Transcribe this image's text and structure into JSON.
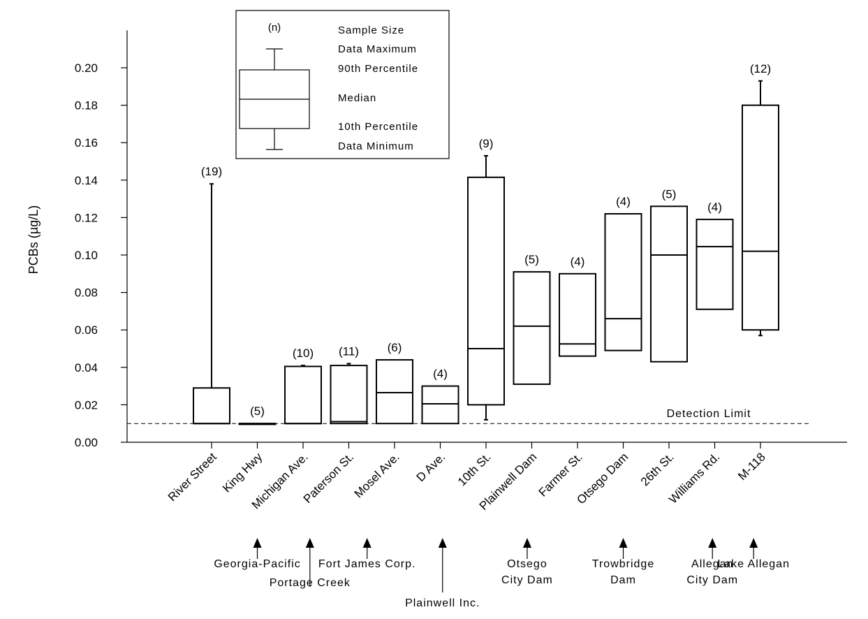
{
  "chart_data": {
    "type": "boxplot",
    "title": "",
    "xlabel": "",
    "ylabel": "PCBs (µg/L)",
    "ylim": [
      0,
      0.22
    ],
    "yticks": [
      "0.00",
      "0.02",
      "0.04",
      "0.06",
      "0.08",
      "0.10",
      "0.12",
      "0.14",
      "0.16",
      "0.18",
      "0.20"
    ],
    "grid": false,
    "categories": [
      "River Street",
      "King Hwy",
      "Michigan Ave.",
      "Paterson St.",
      "Mosel Ave.",
      "D Ave.",
      "10th St.",
      "Plainwell Dam",
      "Farmer St.",
      "Otsego Dam",
      "26th St.",
      "Williams Rd.",
      "M-118"
    ],
    "boxes": [
      {
        "n_label": "(19)",
        "min": 0.01,
        "p10": 0.01,
        "median": 0.01,
        "p90": 0.029,
        "max": 0.138
      },
      {
        "n_label": "(5)",
        "min": 0.01,
        "p10": 0.01,
        "median": 0.01,
        "p90": 0.01,
        "max": 0.01
      },
      {
        "n_label": "(10)",
        "min": 0.01,
        "p10": 0.01,
        "median": 0.01,
        "p90": 0.0405,
        "max": 0.041
      },
      {
        "n_label": "(11)",
        "min": 0.01,
        "p10": 0.01,
        "median": 0.011,
        "p90": 0.041,
        "max": 0.042
      },
      {
        "n_label": "(6)",
        "min": 0.01,
        "p10": 0.01,
        "median": 0.0265,
        "p90": 0.044,
        "max": 0.044
      },
      {
        "n_label": "(4)",
        "min": 0.01,
        "p10": 0.01,
        "median": 0.0205,
        "p90": 0.03,
        "max": 0.03
      },
      {
        "n_label": "(9)",
        "min": 0.012,
        "p10": 0.02,
        "median": 0.05,
        "p90": 0.1415,
        "max": 0.153
      },
      {
        "n_label": "(5)",
        "min": 0.031,
        "p10": 0.031,
        "median": 0.062,
        "p90": 0.091,
        "max": 0.091
      },
      {
        "n_label": "(4)",
        "min": 0.046,
        "p10": 0.046,
        "median": 0.0525,
        "p90": 0.09,
        "max": 0.09
      },
      {
        "n_label": "(4)",
        "min": 0.049,
        "p10": 0.049,
        "median": 0.066,
        "p90": 0.122,
        "max": 0.122
      },
      {
        "n_label": "(5)",
        "min": 0.043,
        "p10": 0.043,
        "median": 0.1,
        "p90": 0.126,
        "max": 0.126
      },
      {
        "n_label": "(4)",
        "min": 0.071,
        "p10": 0.071,
        "median": 0.1045,
        "p90": 0.119,
        "max": 0.119
      },
      {
        "n_label": "(12)",
        "min": 0.057,
        "p10": 0.06,
        "median": 0.102,
        "p90": 0.18,
        "max": 0.193
      }
    ],
    "detection_limit": {
      "value": 0.01,
      "label": "Detection Limit"
    },
    "legend": {
      "placement": "top-left",
      "n_symbol": "(n)",
      "entries": [
        "Sample Size",
        "Data Maximum",
        "90th Percentile",
        "Median",
        "10th Percentile",
        "Data Minimum"
      ]
    },
    "annotations": [
      {
        "lines": [
          "Georgia-Pacific"
        ],
        "x_position": 1.0
      },
      {
        "lines": [
          "Portage Creek"
        ],
        "x_position": 2.15
      },
      {
        "lines": [
          "Fort James Corp."
        ],
        "x_position": 3.4
      },
      {
        "lines": [
          "Plainwell Inc."
        ],
        "x_position": 5.05
      },
      {
        "lines": [
          "Otsego",
          "City Dam"
        ],
        "x_position": 6.9
      },
      {
        "lines": [
          "Trowbridge",
          "Dam"
        ],
        "x_position": 9.0
      },
      {
        "lines": [
          "Allegan",
          "City Dam"
        ],
        "x_position": 10.95
      },
      {
        "lines": [
          "Lake Allegan"
        ],
        "x_position": 11.85
      }
    ]
  }
}
